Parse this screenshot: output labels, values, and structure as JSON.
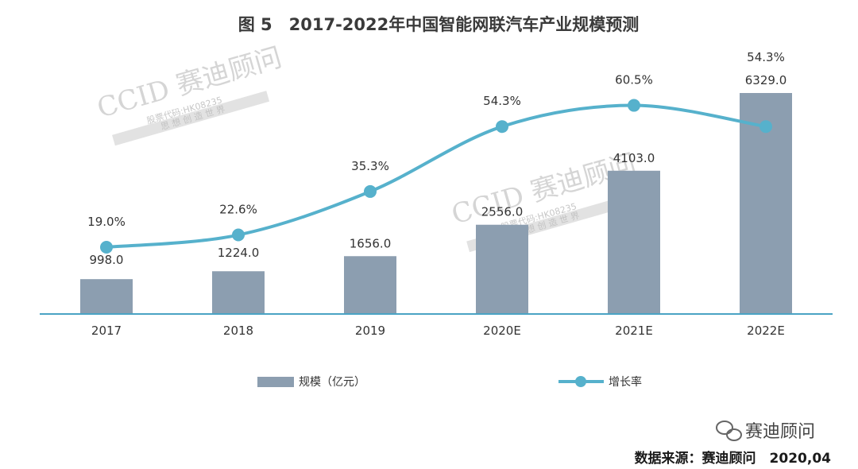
{
  "chart_data": {
    "type": "bar",
    "title": "图 5　2017-2022年中国智能网联汽车产业规模预测",
    "categories": [
      "2017",
      "2018",
      "2019",
      "2020E",
      "2021E",
      "2022E"
    ],
    "series": [
      {
        "name": "规模（亿元）",
        "type": "bar",
        "values": [
          998.0,
          1224.0,
          1656.0,
          2556.0,
          4103.0,
          6329.0
        ],
        "labels": [
          "998.0",
          "1224.0",
          "1656.0",
          "2556.0",
          "4103.0",
          "6329.0"
        ],
        "color": "#8c9eb0"
      },
      {
        "name": "增长率",
        "type": "line",
        "values": [
          19.0,
          22.6,
          35.3,
          54.3,
          60.5,
          54.3
        ],
        "labels": [
          "19.0%",
          "22.6%",
          "35.3%",
          "54.3%",
          "60.5%",
          "54.3%"
        ],
        "color": "#56b1cc"
      }
    ],
    "legend_position": "bottom",
    "grid": false
  },
  "watermark": {
    "brand": "CCID 赛迪顾问",
    "stock": "股票代码:HK08235",
    "slogan": "思 想 创 造 世 界"
  },
  "source_note": "数据来源：赛迪顾问　2020,04",
  "wechat_brand": "赛迪顾问",
  "colors": {
    "axis": "#4aa3c4",
    "bar": "#8c9eb0",
    "line": "#56b1cc",
    "wechat_icon": "#666666"
  }
}
